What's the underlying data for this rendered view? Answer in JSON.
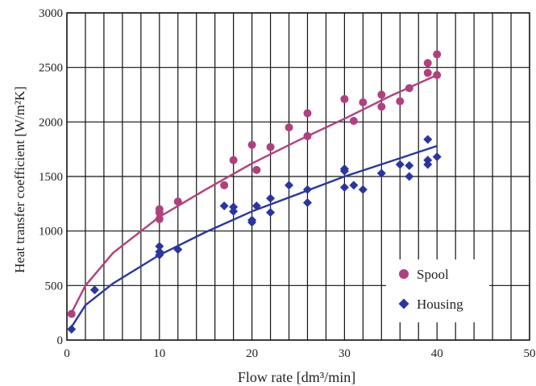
{
  "chart_data": {
    "type": "scatter",
    "xlabel": "Flow rate  [dm³/min]",
    "ylabel": "Heat transfer coefficient  [W/m²K]",
    "xlim": [
      0,
      50
    ],
    "ylim": [
      0,
      3000
    ],
    "x_ticks": [
      0,
      10,
      20,
      30,
      40,
      50
    ],
    "y_ticks": [
      0,
      500,
      1000,
      1500,
      2000,
      2500,
      3000
    ],
    "grid": true,
    "legend_position": "bottom-right",
    "series": [
      {
        "name": "Spool",
        "marker": "circle",
        "color": "#b0407f",
        "points": [
          [
            0.5,
            240
          ],
          [
            10,
            1200
          ],
          [
            10,
            1170
          ],
          [
            10,
            1110
          ],
          [
            12,
            1270
          ],
          [
            17,
            1420
          ],
          [
            18,
            1650
          ],
          [
            20,
            1790
          ],
          [
            20.5,
            1560
          ],
          [
            22,
            1770
          ],
          [
            24,
            1950
          ],
          [
            26,
            1870
          ],
          [
            26,
            2080
          ],
          [
            30,
            2210
          ],
          [
            31,
            2010
          ],
          [
            32,
            2180
          ],
          [
            34,
            2140
          ],
          [
            34,
            2250
          ],
          [
            36,
            2190
          ],
          [
            37,
            2310
          ],
          [
            39,
            2540
          ],
          [
            39,
            2450
          ],
          [
            40,
            2620
          ],
          [
            40,
            2430
          ]
        ],
        "fit": [
          [
            0.5,
            250
          ],
          [
            2,
            500
          ],
          [
            5,
            800
          ],
          [
            10,
            1130
          ],
          [
            15,
            1380
          ],
          [
            20,
            1620
          ],
          [
            25,
            1830
          ],
          [
            30,
            2030
          ],
          [
            35,
            2240
          ],
          [
            40,
            2430
          ]
        ]
      },
      {
        "name": "Housing",
        "marker": "diamond",
        "color": "#2a35a0",
        "points": [
          [
            0.5,
            100
          ],
          [
            3,
            460
          ],
          [
            10,
            860
          ],
          [
            10,
            810
          ],
          [
            10,
            780
          ],
          [
            12,
            830
          ],
          [
            17,
            1230
          ],
          [
            18,
            1220
          ],
          [
            18,
            1180
          ],
          [
            20,
            1100
          ],
          [
            20,
            1080
          ],
          [
            20.5,
            1230
          ],
          [
            22,
            1300
          ],
          [
            22,
            1170
          ],
          [
            24,
            1420
          ],
          [
            26,
            1380
          ],
          [
            26,
            1260
          ],
          [
            30,
            1570
          ],
          [
            30,
            1550
          ],
          [
            30,
            1400
          ],
          [
            31,
            1420
          ],
          [
            32,
            1380
          ],
          [
            34,
            1530
          ],
          [
            36,
            1610
          ],
          [
            37,
            1600
          ],
          [
            37,
            1500
          ],
          [
            39,
            1840
          ],
          [
            39,
            1650
          ],
          [
            39,
            1610
          ],
          [
            40,
            1680
          ]
        ],
        "fit": [
          [
            0.5,
            120
          ],
          [
            2,
            320
          ],
          [
            5,
            520
          ],
          [
            10,
            780
          ],
          [
            15,
            990
          ],
          [
            20,
            1180
          ],
          [
            25,
            1340
          ],
          [
            30,
            1500
          ],
          [
            35,
            1640
          ],
          [
            40,
            1780
          ]
        ]
      }
    ]
  }
}
